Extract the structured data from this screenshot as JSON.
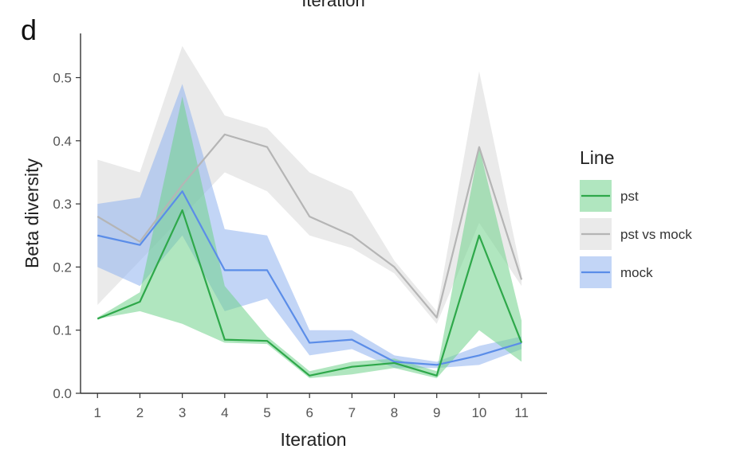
{
  "top_text": "Iteration",
  "panel_label": "d",
  "chart_data": {
    "type": "line",
    "xlabel": "Iteration",
    "ylabel": "Beta diversity",
    "x": [
      1,
      2,
      3,
      4,
      5,
      6,
      7,
      8,
      9,
      10,
      11
    ],
    "xticks": [
      "1",
      "2",
      "3",
      "4",
      "5",
      "6",
      "7",
      "8",
      "9",
      "10",
      "11"
    ],
    "yticks": [
      "0.0",
      "0.1",
      "0.2",
      "0.3",
      "0.4",
      "0.5"
    ],
    "ylim": [
      0,
      0.57
    ],
    "xlim": [
      0.6,
      11.6
    ],
    "legend": {
      "title": "Line",
      "position": "right"
    },
    "series": [
      {
        "name": "pst vs mock",
        "color": "#b5b5b5",
        "fill": "#d9d9d9",
        "values": [
          0.28,
          0.24,
          0.33,
          0.41,
          0.39,
          0.28,
          0.25,
          0.2,
          0.12,
          0.39,
          0.18
        ],
        "lower": [
          0.14,
          0.21,
          0.28,
          0.35,
          0.32,
          0.25,
          0.23,
          0.19,
          0.11,
          0.27,
          0.17
        ],
        "upper": [
          0.37,
          0.35,
          0.55,
          0.44,
          0.42,
          0.35,
          0.32,
          0.21,
          0.13,
          0.51,
          0.19
        ]
      },
      {
        "name": "mock",
        "color": "#5b8de8",
        "fill": "#8fb2ef",
        "values": [
          0.25,
          0.235,
          0.32,
          0.195,
          0.195,
          0.08,
          0.085,
          0.05,
          0.045,
          0.06,
          0.08
        ],
        "lower": [
          0.2,
          0.17,
          0.25,
          0.13,
          0.15,
          0.06,
          0.07,
          0.04,
          0.04,
          0.045,
          0.07
        ],
        "upper": [
          0.3,
          0.31,
          0.49,
          0.26,
          0.25,
          0.1,
          0.1,
          0.06,
          0.05,
          0.075,
          0.09
        ]
      },
      {
        "name": "pst",
        "color": "#2ea84a",
        "fill": "#6fd28a",
        "values": [
          0.118,
          0.145,
          0.29,
          0.085,
          0.083,
          0.028,
          0.042,
          0.048,
          0.028,
          0.25,
          0.08
        ],
        "lower": [
          0.118,
          0.13,
          0.11,
          0.08,
          0.078,
          0.024,
          0.03,
          0.04,
          0.024,
          0.1,
          0.05
        ],
        "upper": [
          0.12,
          0.16,
          0.47,
          0.17,
          0.09,
          0.035,
          0.05,
          0.055,
          0.035,
          0.39,
          0.115
        ]
      }
    ],
    "legend_order": [
      "pst",
      "pst vs mock",
      "mock"
    ]
  }
}
